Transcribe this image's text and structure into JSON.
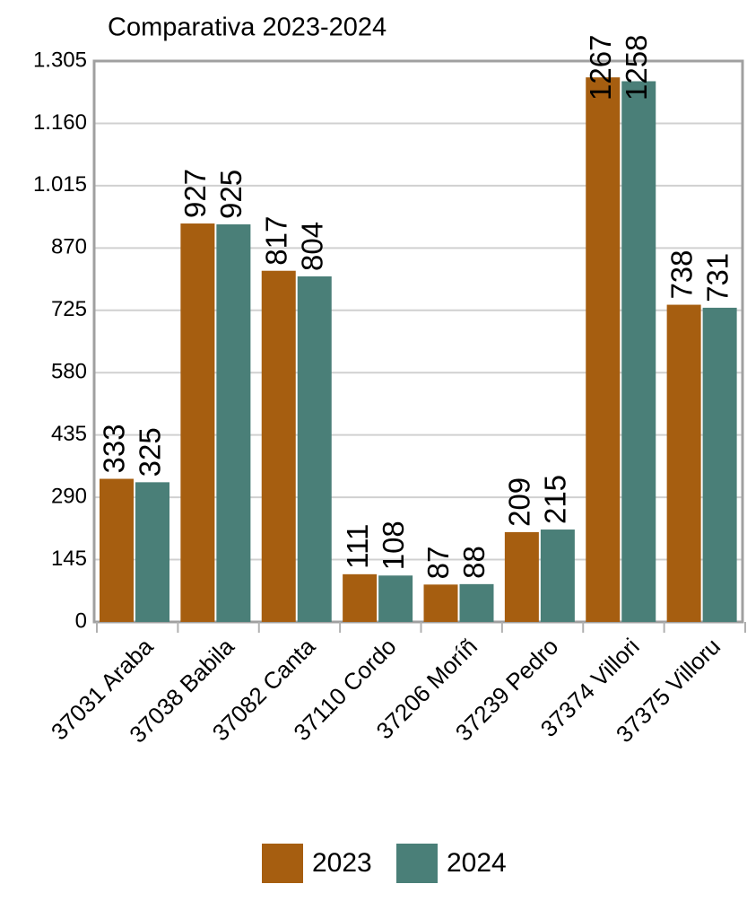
{
  "chart_data": {
    "type": "bar",
    "title": "Comparativa 2023-2024",
    "categories": [
      "37031 Araba",
      "37038 Babila",
      "37082 Canta",
      "37110 Cordo",
      "37206 Moríñ",
      "37239 Pedro",
      "37374 Villori",
      "37375 Villoru"
    ],
    "series": [
      {
        "name": "2023",
        "color": "#a65e10",
        "label_color": "#d64b5a",
        "values": [
          333,
          927,
          817,
          111,
          87,
          209,
          1267,
          738
        ]
      },
      {
        "name": "2024",
        "color": "#4a7f78",
        "label_color": "#000000",
        "values": [
          325,
          925,
          804,
          108,
          88,
          215,
          1258,
          731
        ]
      }
    ],
    "ylim": [
      0,
      1305
    ],
    "yticks": [
      0,
      145,
      290,
      435,
      580,
      725,
      870,
      {
        "value": 1015,
        "label": "1.015"
      },
      {
        "value": 1160,
        "label": "1.160"
      },
      {
        "value": 1305,
        "label": "1.305"
      }
    ],
    "grid": true
  }
}
